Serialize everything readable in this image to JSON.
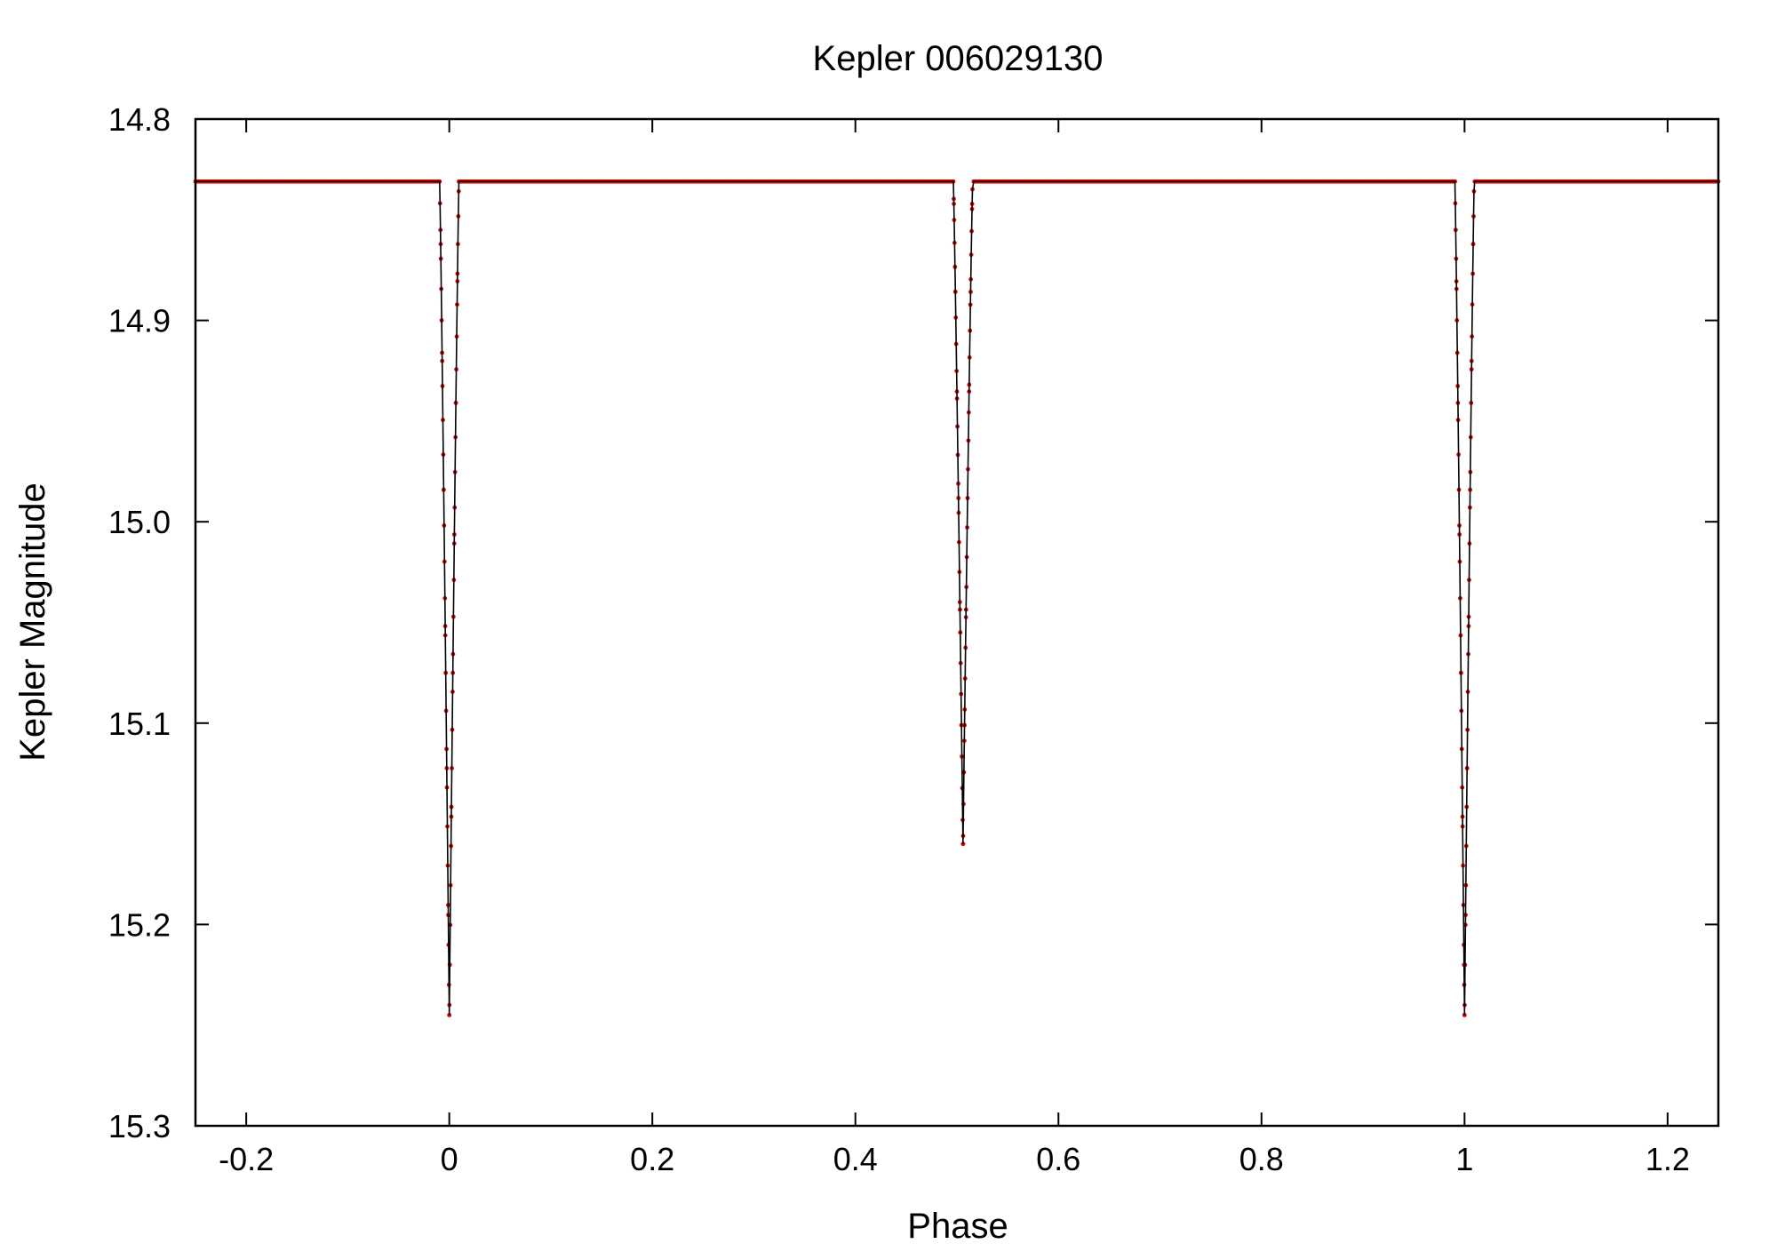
{
  "chart_data": {
    "type": "line",
    "title": "Kepler 006029130",
    "xlabel": "Phase",
    "ylabel": "Kepler Magnitude",
    "xlim": [
      -0.25,
      1.25
    ],
    "ylim": [
      14.8,
      15.3
    ],
    "y_inverted": true,
    "grid": false,
    "x_ticks": [
      -0.2,
      0,
      0.2,
      0.4,
      0.6,
      0.8,
      1,
      1.2
    ],
    "x_tick_labels": [
      "-0.2",
      "0",
      "0.2",
      "0.4",
      "0.6",
      "0.8",
      "1",
      "1.2"
    ],
    "y_ticks": [
      14.8,
      14.9,
      15.0,
      15.1,
      15.2,
      15.3
    ],
    "y_tick_labels": [
      "14.8",
      "14.9",
      "15.0",
      "15.1",
      "15.2",
      "15.3"
    ],
    "baseline_magnitude": 14.831,
    "eclipses": [
      {
        "phase": 0.0,
        "min_magnitude": 15.245,
        "half_width": 0.0095
      },
      {
        "phase": 0.506,
        "min_magnitude": 15.16,
        "half_width": 0.0095
      },
      {
        "phase": 1.0,
        "min_magnitude": 15.245,
        "half_width": 0.0095
      }
    ],
    "series": [
      {
        "style": "points",
        "color": "#e00000"
      },
      {
        "style": "line",
        "color": "#000000"
      }
    ]
  }
}
